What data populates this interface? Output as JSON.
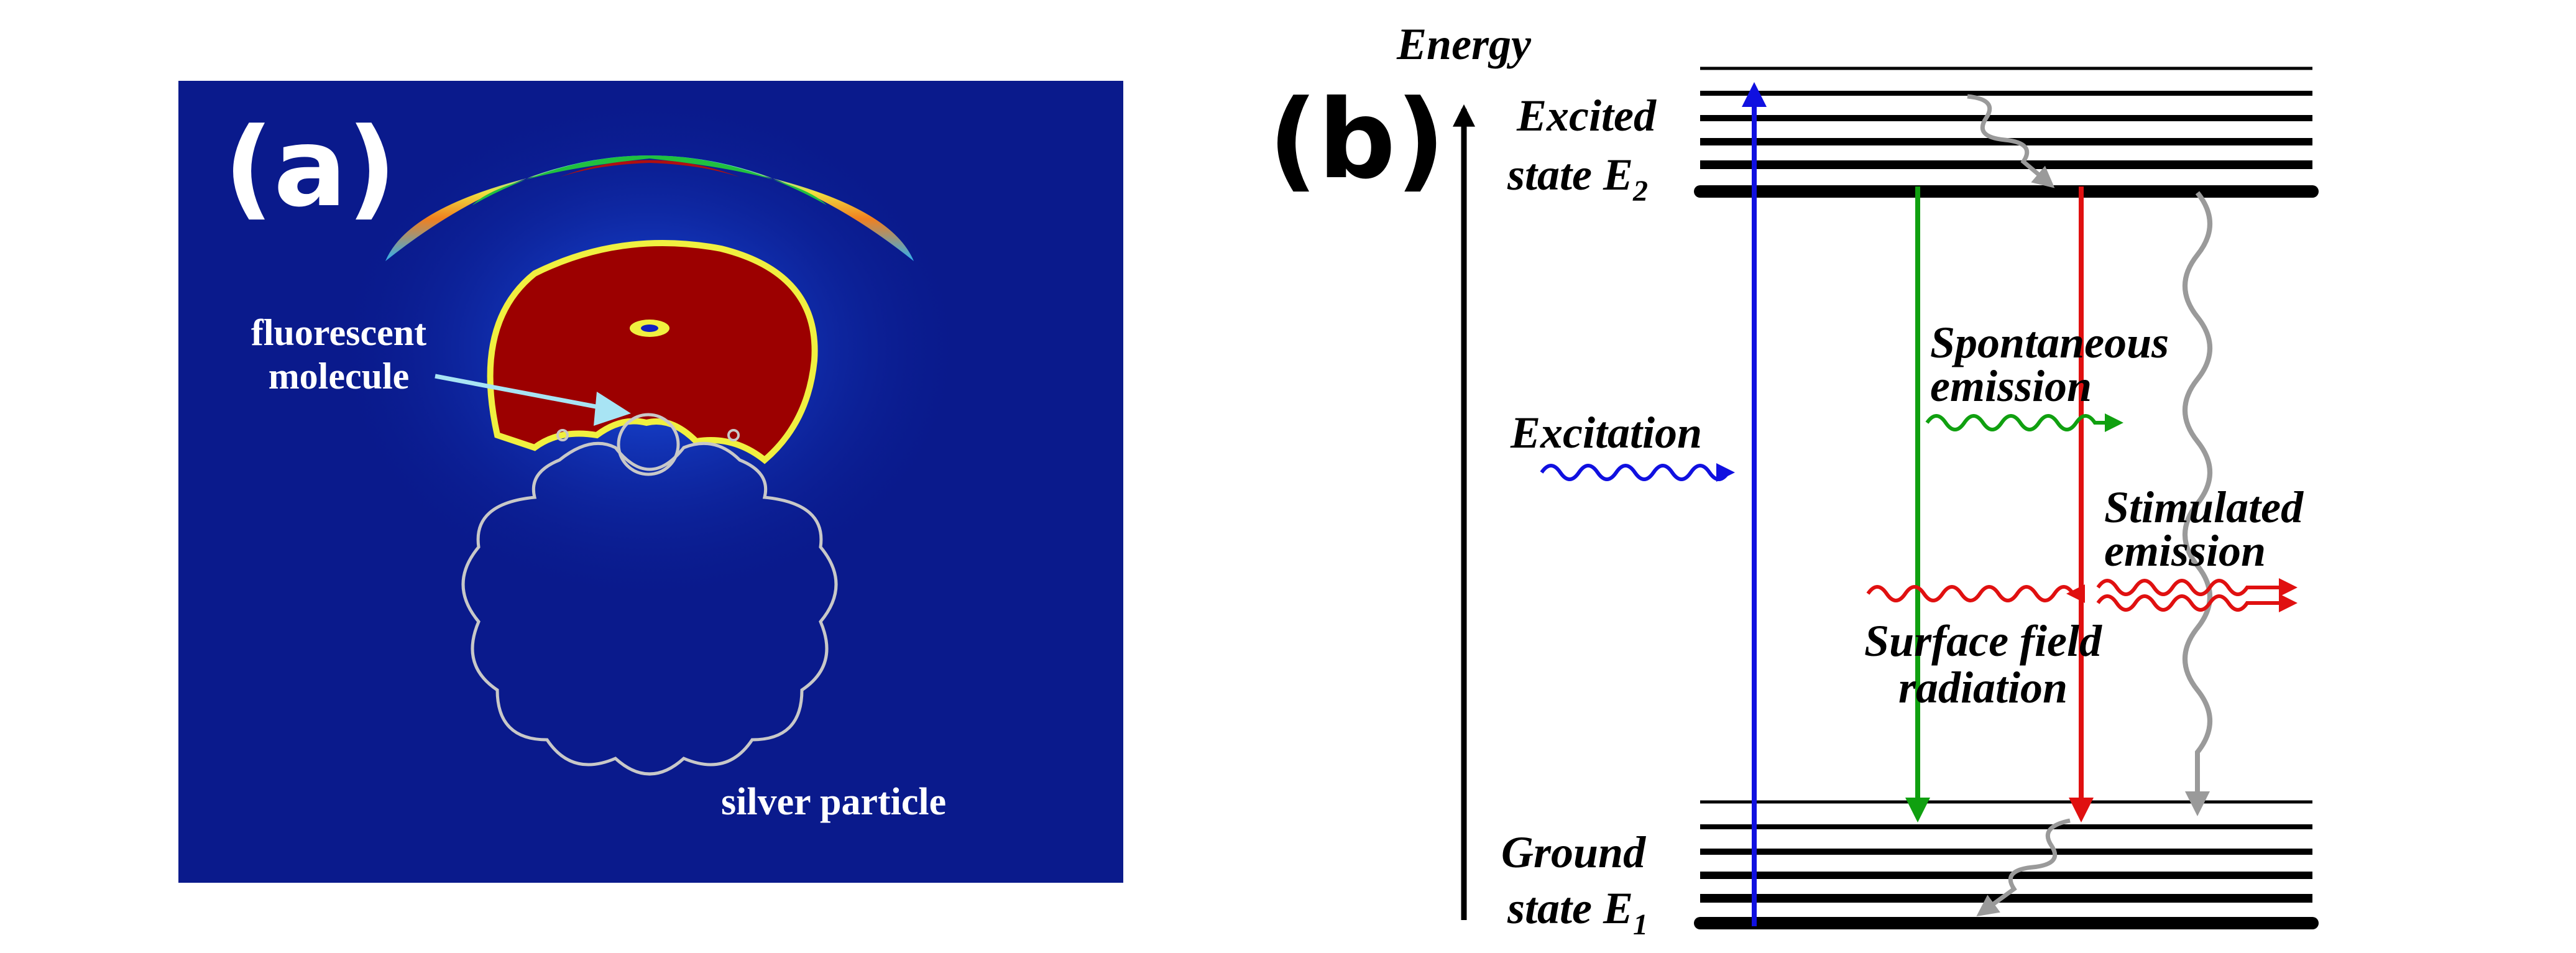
{
  "panel_a": {
    "label": "(a)",
    "molecule_label_line1": "fluorescent",
    "molecule_label_line2": "molecule",
    "particle_label": "silver particle",
    "colors": {
      "background": "#0a1a8c",
      "hot_core": "#9c0000",
      "ring": "#20c040",
      "outline": "#c8c8c8",
      "pointer": "#a8e4f4"
    }
  },
  "panel_b": {
    "label": "(b)",
    "axis_label": "Energy",
    "excited_line1": "Excited",
    "excited_line2": "state E",
    "excited_sub": "2",
    "ground_line1": "Ground",
    "ground_line2": "state E",
    "ground_sub": "1",
    "excitation": "Excitation",
    "spontaneous_line1": "Spontaneous",
    "spontaneous_line2": "emission",
    "stimulated_line1": "Stimulated",
    "stimulated_line2": "emission",
    "surface_line1": "Surface field",
    "surface_line2": "radiation",
    "colors": {
      "excitation": "#1010e0",
      "spontaneous": "#10a010",
      "surface": "#e01010",
      "nonradiative": "#9a9a9a",
      "levels": "#000000"
    }
  }
}
